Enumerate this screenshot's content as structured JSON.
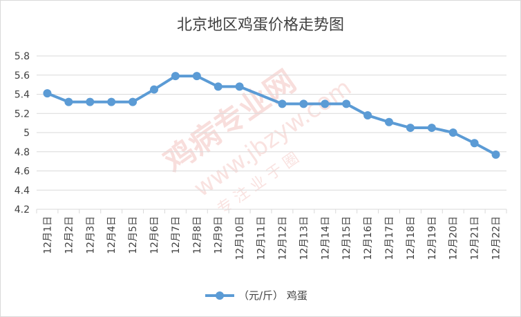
{
  "chart_data": {
    "type": "line",
    "title": "北京地区鸡蛋价格走势图",
    "categories": [
      "12月1日",
      "12月2日",
      "12月3日",
      "12月4日",
      "12月5日",
      "12月6日",
      "12月7日",
      "12月8日",
      "12月9日",
      "12月10日",
      "12月11日",
      "12月12日",
      "12月13日",
      "12月14日",
      "12月15日",
      "12月16日",
      "12月17日",
      "12月18日",
      "12月19日",
      "12月20日",
      "12月21日",
      "12月22日"
    ],
    "series": [
      {
        "name": "（元/斤） 鸡蛋",
        "values": [
          5.41,
          5.32,
          5.32,
          5.32,
          5.32,
          5.45,
          5.59,
          5.59,
          5.48,
          5.48,
          null,
          5.3,
          5.3,
          5.3,
          5.3,
          5.18,
          5.11,
          5.05,
          5.05,
          5.0,
          4.89,
          4.77
        ],
        "color": "#5b9bd5"
      }
    ],
    "ylim": [
      4.2,
      5.8
    ],
    "yticks": [
      "4.2",
      "4.4",
      "4.6",
      "4.8",
      "5",
      "5.2",
      "5.4",
      "5.6",
      "5.8"
    ],
    "grid": true,
    "legend_position": "bottom",
    "gridline_color": "#d9d9d9"
  },
  "watermark": {
    "brand": "鸡病专业网",
    "url": "www.jbzyw.com",
    "sub": "专 注 业 于 圈"
  }
}
